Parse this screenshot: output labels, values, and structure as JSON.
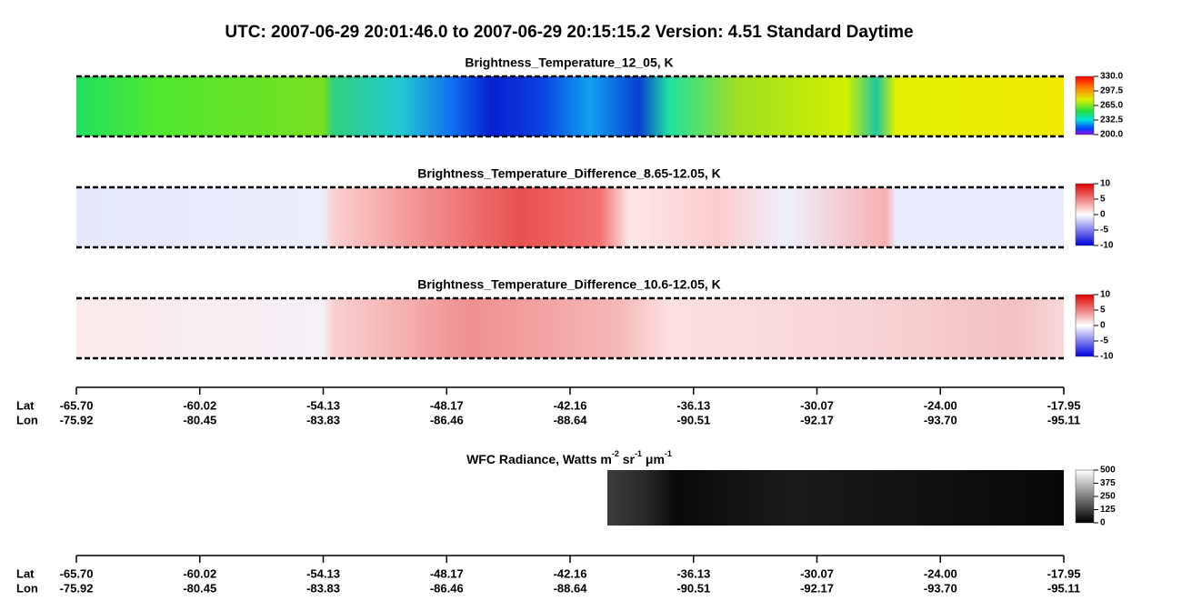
{
  "header": {
    "title": "UTC:  2007-06-29   20:01:46.0  to  2007-06-29   20:15:15.2    Version: 4.51  Standard Daytime"
  },
  "panels": [
    {
      "title": "Brightness_Temperature_12_05, K",
      "colorbar_ticks": [
        "330.0",
        "297.5",
        "265.0",
        "232.5",
        "200.0"
      ]
    },
    {
      "title": "Brightness_Temperature_Difference_8.65-12.05, K",
      "colorbar_ticks": [
        "10",
        "5",
        "0",
        "-5",
        "-10"
      ]
    },
    {
      "title": "Brightness_Temperature_Difference_10.6-12.05, K",
      "colorbar_ticks": [
        "10",
        "5",
        "0",
        "-5",
        "-10"
      ]
    },
    {
      "title_parts": [
        "WFC Radiance, Watts m",
        "-2",
        " sr",
        "-1",
        " μm",
        "-1"
      ],
      "colorbar_ticks": [
        "500",
        "375",
        "250",
        "125",
        "0"
      ]
    }
  ],
  "axes": [
    {
      "row_labels": [
        "Lat",
        "Lon"
      ],
      "lat": [
        "-65.70",
        "-60.02",
        "-54.13",
        "-48.17",
        "-42.16",
        "-36.13",
        "-30.07",
        "-24.00",
        "-17.95"
      ],
      "lon": [
        "-75.92",
        "-80.45",
        "-83.83",
        "-86.46",
        "-88.64",
        "-90.51",
        "-92.17",
        "-93.70",
        "-95.11"
      ]
    },
    {
      "row_labels": [
        "Lat",
        "Lon"
      ],
      "lat": [
        "-65.70",
        "-60.02",
        "-54.13",
        "-48.17",
        "-42.16",
        "-36.13",
        "-30.07",
        "-24.00",
        "-17.95"
      ],
      "lon": [
        "-75.92",
        "-80.45",
        "-83.83",
        "-86.46",
        "-88.64",
        "-90.51",
        "-92.17",
        "-93.70",
        "-95.11"
      ]
    }
  ]
}
